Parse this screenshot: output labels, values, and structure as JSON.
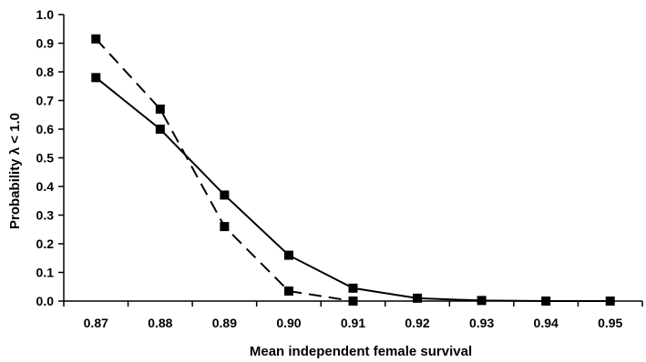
{
  "chart_data": {
    "type": "line",
    "title": "",
    "xlabel": "Mean independent female survival",
    "ylabel": "Probability λ < 1.0",
    "x": [
      0.87,
      0.88,
      0.89,
      0.9,
      0.91,
      0.92,
      0.93,
      0.94,
      0.95
    ],
    "x_tick_labels": [
      "0.87",
      "0.88",
      "0.89",
      "0.90",
      "0.91",
      "0.92",
      "0.93",
      "0.94",
      "0.95"
    ],
    "y_tick_labels": [
      "0.0",
      "0.1",
      "0.2",
      "0.3",
      "0.4",
      "0.5",
      "0.6",
      "0.7",
      "0.8",
      "0.9",
      "1.0"
    ],
    "ylim": [
      0,
      1.0
    ],
    "grid": false,
    "legend": "none",
    "series": [
      {
        "style": "solid",
        "marker": "square",
        "color": "#000000",
        "values": [
          0.78,
          0.6,
          0.37,
          0.16,
          0.045,
          0.01,
          0.002,
          0.0,
          0.0
        ]
      },
      {
        "style": "dashed",
        "marker": "square",
        "color": "#000000",
        "values": [
          0.915,
          0.67,
          0.26,
          0.035,
          0.0,
          null,
          null,
          null,
          null
        ]
      }
    ]
  }
}
